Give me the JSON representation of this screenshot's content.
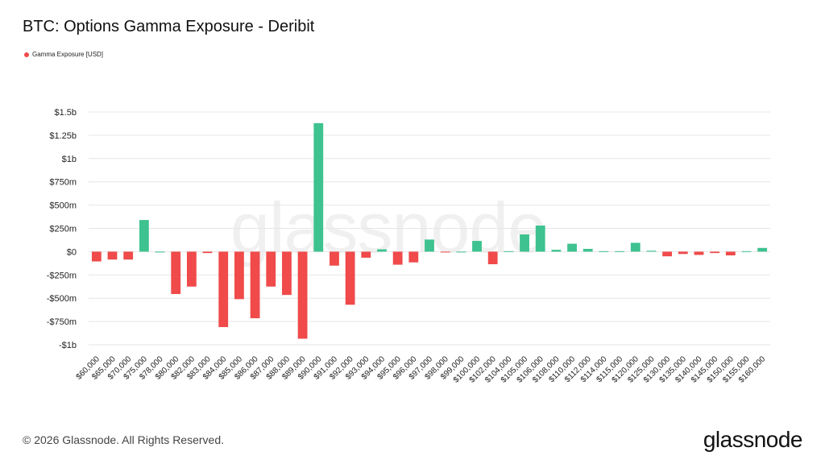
{
  "title": "BTC: Options Gamma Exposure - Deribit",
  "legend": {
    "label": "Gamma Exposure [USD]",
    "color": "#f04a4a"
  },
  "watermark": "glassnode",
  "footer": {
    "copyright": "© 2026 Glassnode. All Rights Reserved.",
    "logo": "glassnode"
  },
  "colors": {
    "positive": "#3ec28f",
    "negative": "#f04a4a",
    "grid": "#e6e6e6",
    "axis_text": "#222222"
  },
  "chart_data": {
    "type": "bar",
    "ylim": [
      -1000,
      1500
    ],
    "yticks": [
      {
        "v": 1500,
        "label": "$1.5b"
      },
      {
        "v": 1250,
        "label": "$1.25b"
      },
      {
        "v": 1000,
        "label": "$1b"
      },
      {
        "v": 750,
        "label": "$750m"
      },
      {
        "v": 500,
        "label": "$500m"
      },
      {
        "v": 250,
        "label": "$250m"
      },
      {
        "v": 0,
        "label": "$0"
      },
      {
        "v": -250,
        "label": "-$250m"
      },
      {
        "v": -500,
        "label": "-$500m"
      },
      {
        "v": -750,
        "label": "-$750m"
      },
      {
        "v": -1000,
        "label": "-$1b"
      }
    ],
    "ylabel_unit": "millions USD",
    "grid": true,
    "categories": [
      "$60,000",
      "$65,000",
      "$70,000",
      "$75,000",
      "$78,000",
      "$80,000",
      "$82,000",
      "$83,000",
      "$84,000",
      "$85,000",
      "$86,000",
      "$87,000",
      "$88,000",
      "$89,000",
      "$90,000",
      "$91,000",
      "$92,000",
      "$93,000",
      "$94,000",
      "$95,000",
      "$96,000",
      "$97,000",
      "$98,000",
      "$99,000",
      "$100,000",
      "$102,000",
      "$104,000",
      "$105,000",
      "$106,000",
      "$108,000",
      "$110,000",
      "$112,000",
      "$114,000",
      "$115,000",
      "$120,000",
      "$125,000",
      "$130,000",
      "$135,000",
      "$140,000",
      "$145,000",
      "$150,000",
      "$155,000",
      "$160,000"
    ],
    "values": [
      -105,
      -85,
      -85,
      340,
      0,
      -455,
      -375,
      -15,
      -810,
      -510,
      -715,
      -375,
      -465,
      -935,
      1380,
      -150,
      -570,
      -65,
      25,
      -140,
      -115,
      130,
      -5,
      0,
      115,
      -135,
      5,
      185,
      280,
      20,
      85,
      30,
      5,
      5,
      95,
      10,
      -50,
      -25,
      -35,
      -15,
      -40,
      5,
      40
    ]
  }
}
